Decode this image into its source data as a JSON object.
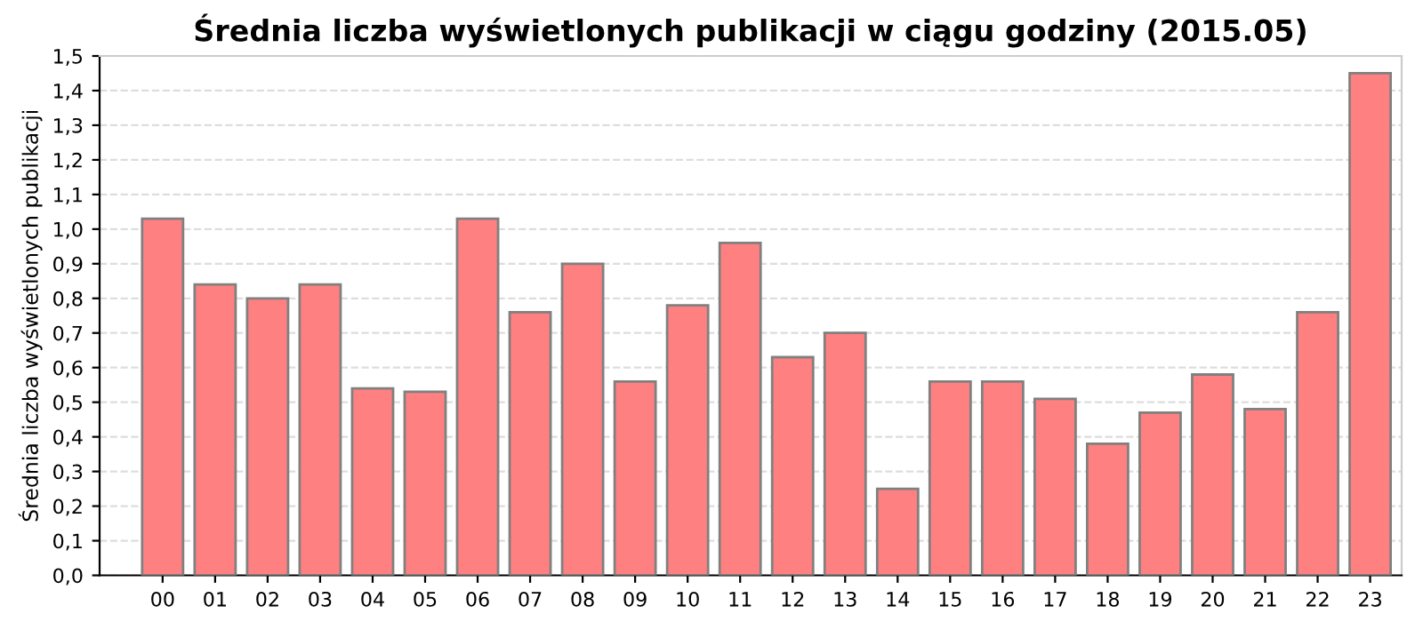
{
  "chart_data": {
    "type": "bar",
    "title": "Średnia liczba wyświetlonych publikacji w ciągu godziny (2015.05)",
    "ylabel": "Średnia liczba wyświetlonych publikacji",
    "categories": [
      "00",
      "01",
      "02",
      "03",
      "04",
      "05",
      "06",
      "07",
      "08",
      "09",
      "10",
      "11",
      "12",
      "13",
      "14",
      "15",
      "16",
      "17",
      "18",
      "19",
      "20",
      "21",
      "22",
      "23"
    ],
    "values": [
      1.03,
      0.84,
      0.8,
      0.84,
      0.54,
      0.53,
      1.03,
      0.76,
      0.9,
      0.56,
      0.78,
      0.96,
      0.63,
      0.7,
      0.25,
      0.56,
      0.56,
      0.51,
      0.38,
      0.47,
      0.58,
      0.48,
      0.76,
      1.45
    ],
    "color": "#ff8080",
    "ylim": [
      0,
      1.5
    ],
    "yticks": [
      {
        "value": 0,
        "label": "0,0"
      },
      {
        "value": 0.1,
        "label": "0,1"
      },
      {
        "value": 0.2,
        "label": "0,2"
      },
      {
        "value": 0.3,
        "label": "0,3"
      },
      {
        "value": 0.4,
        "label": "0,4"
      },
      {
        "value": 0.5,
        "label": "0,5"
      },
      {
        "value": 0.6,
        "label": "0,6"
      },
      {
        "value": 0.7,
        "label": "0,7"
      },
      {
        "value": 0.8,
        "label": "0,8"
      },
      {
        "value": 0.9,
        "label": "0,9"
      },
      {
        "value": 1.0,
        "label": "1,0"
      },
      {
        "value": 1.1,
        "label": "1,1"
      },
      {
        "value": 1.2,
        "label": "1,2"
      },
      {
        "value": 1.3,
        "label": "1,3"
      },
      {
        "value": 1.4,
        "label": "1,4"
      },
      {
        "value": 1.5,
        "label": "1,5"
      }
    ],
    "grid": "y"
  }
}
